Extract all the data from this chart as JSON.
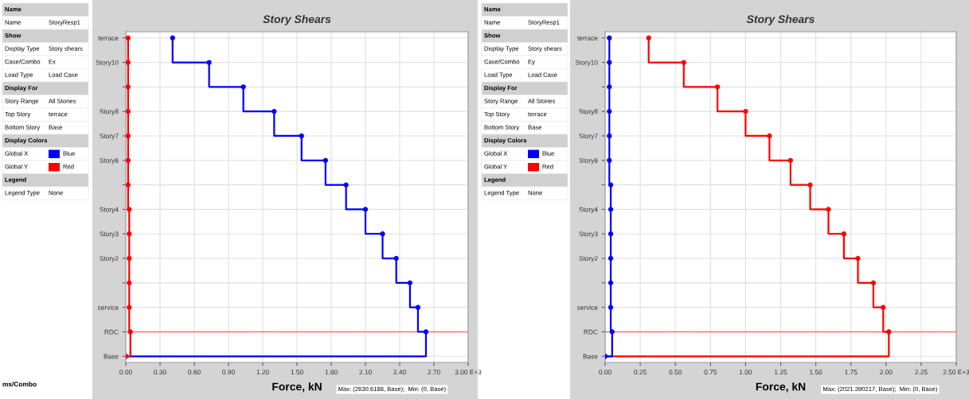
{
  "chart_data": [
    {
      "type": "step",
      "orientation": "horizontal",
      "title": "Story Shears",
      "xlabel": "Force, kN",
      "categories": [
        "terrace",
        "Story10",
        null,
        "Story8",
        "Story7",
        "Story6",
        null,
        "Story4",
        "Story3",
        "Story2",
        null,
        "service",
        "RDC",
        "Base"
      ],
      "series": [
        {
          "color": "#0000ff",
          "values": [
            0.41,
            0.73,
            1.03,
            1.3,
            1.54,
            1.75,
            1.93,
            2.1,
            2.25,
            2.37,
            2.49,
            2.56,
            2.63,
            0
          ]
        },
        {
          "color": "#ff0000",
          "values": [
            0.02,
            0.02,
            0.02,
            0.02,
            0.02,
            0.02,
            0.02,
            0.03,
            0.03,
            0.03,
            0.03,
            0.03,
            0.04,
            0
          ]
        }
      ],
      "xlim": [
        0,
        3.0
      ],
      "xticks": [
        {
          "value": 0,
          "label": "0.00"
        },
        {
          "value": 0.3,
          "label": "0.30"
        },
        {
          "value": 0.6,
          "label": "0.60"
        },
        {
          "value": 0.9,
          "label": "0.90"
        },
        {
          "value": 1.2,
          "label": "1.20"
        },
        {
          "value": 1.5,
          "label": "1.50"
        },
        {
          "value": 1.8,
          "label": "1.80"
        },
        {
          "value": 2.1,
          "label": "2.10"
        },
        {
          "value": 2.4,
          "label": "2.40"
        },
        {
          "value": 2.7,
          "label": "2.70"
        },
        {
          "value": 3.0,
          "label": "3.00 E+3"
        }
      ],
      "ref_lines": [
        {
          "axis": "y",
          "value": "RDC",
          "color": "#ff7070"
        }
      ],
      "marker": "circle",
      "grid": true,
      "annotations": [
        "Name",
        "Name",
        "StoryResp1",
        "Show",
        "Display Type",
        "Story shears",
        "Case/Combo",
        "Ex",
        "Load Type",
        "Load Case",
        "Display For",
        "Story Range",
        "All Stories",
        "Top Story",
        "terrace",
        "Bottom Story",
        "Base",
        "Display Colors",
        "Global X",
        "Blue",
        "Global Y",
        "Red",
        "Legend",
        "Legend Type",
        "None",
        "Max: (2630.6188, Base);  Min: (0, Base)",
        "ms/Combo"
      ]
    },
    {
      "type": "step",
      "orientation": "horizontal",
      "title": "Story Shears",
      "xlabel": "Force, kN",
      "categories": [
        "terrace",
        "Story10",
        null,
        "Story8",
        "Story7",
        "Story6",
        null,
        "Story4",
        "Story3",
        "Story2",
        null,
        "service",
        "RDC",
        "Base"
      ],
      "series": [
        {
          "color": "#ff0000",
          "values": [
            0.31,
            0.56,
            0.8,
            1.0,
            1.17,
            1.32,
            1.46,
            1.59,
            1.7,
            1.8,
            1.91,
            1.98,
            2.02,
            0
          ]
        },
        {
          "color": "#0000ff",
          "values": [
            0.03,
            0.03,
            0.03,
            0.03,
            0.03,
            0.03,
            0.04,
            0.04,
            0.04,
            0.04,
            0.04,
            0.04,
            0.05,
            0
          ]
        }
      ],
      "xlim": [
        0,
        2.5
      ],
      "xticks": [
        {
          "value": 0,
          "label": "0.00"
        },
        {
          "value": 0.25,
          "label": "0.25"
        },
        {
          "value": 0.5,
          "label": "0.50"
        },
        {
          "value": 0.75,
          "label": "0.75"
        },
        {
          "value": 1.0,
          "label": "1.00"
        },
        {
          "value": 1.25,
          "label": "1.25"
        },
        {
          "value": 1.5,
          "label": "1.50"
        },
        {
          "value": 1.75,
          "label": "1.75"
        },
        {
          "value": 2.0,
          "label": "2.00"
        },
        {
          "value": 2.25,
          "label": "2.25"
        },
        {
          "value": 2.5,
          "label": "2.50 E+3"
        }
      ],
      "ref_lines": [
        {
          "axis": "y",
          "value": "RDC",
          "color": "#ff7070"
        }
      ],
      "marker": "circle",
      "grid": true,
      "annotations": [
        "Name",
        "Name",
        "StoryResp1",
        "Show",
        "Display Type",
        "Story shears",
        "Case/Combo",
        "Ey",
        "Load Type",
        "Load Case",
        "Display For",
        "Story Range",
        "All Stories",
        "Top Story",
        "terrace",
        "Bottom Story",
        "Base",
        "Display Colors",
        "Global X",
        "Blue",
        "Global Y",
        "Red",
        "Legend",
        "Legend Type",
        "None",
        "Max: (2021.390217, Base);  Min: (0, Base)"
      ]
    }
  ]
}
